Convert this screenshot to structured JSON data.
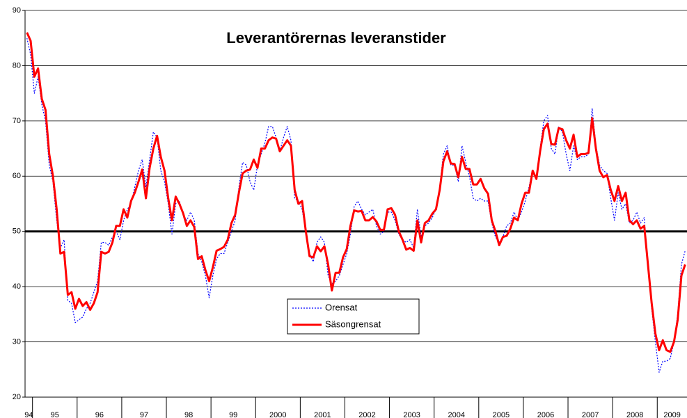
{
  "chart_data": {
    "type": "line",
    "title": "Leverantörernas leveranstider",
    "categories": [
      "94",
      null,
      "95",
      null,
      null,
      null,
      null,
      null,
      null,
      null,
      null,
      null,
      null,
      null,
      "96",
      null,
      null,
      null,
      null,
      null,
      null,
      null,
      null,
      null,
      null,
      null,
      "97",
      null,
      null,
      null,
      null,
      null,
      null,
      null,
      null,
      null,
      null,
      null,
      "98",
      null,
      null,
      null,
      null,
      null,
      null,
      null,
      null,
      null,
      null,
      null,
      "99",
      null,
      null,
      null,
      null,
      null,
      null,
      null,
      null,
      null,
      null,
      null,
      "2000",
      null,
      null,
      null,
      null,
      null,
      null,
      null,
      null,
      null,
      null,
      null,
      "2001",
      null,
      null,
      null,
      null,
      null,
      null,
      null,
      null,
      null,
      null,
      null,
      "2002",
      null,
      null,
      null,
      null,
      null,
      null,
      null,
      null,
      null,
      null,
      null,
      "2003",
      null,
      null,
      null,
      null,
      null,
      null,
      null,
      null,
      null,
      null,
      null,
      "2004",
      null,
      null,
      null,
      null,
      null,
      null,
      null,
      null,
      null,
      null,
      null,
      "2005",
      null,
      null,
      null,
      null,
      null,
      null,
      null,
      null,
      null,
      null,
      null,
      "2006",
      null,
      null,
      null,
      null,
      null,
      null,
      null,
      null,
      null,
      null,
      null,
      "2007",
      null,
      null,
      null,
      null,
      null,
      null,
      null,
      null,
      null,
      null,
      null,
      "2008",
      null,
      null,
      null,
      null,
      null,
      null,
      null,
      null,
      null,
      null,
      null,
      "2009",
      null,
      null,
      null,
      null,
      null,
      null,
      null
    ],
    "series": [
      {
        "name": "Orensat",
        "color": "#0000ff",
        "dash": true,
        "values": [
          85,
          82,
          75,
          78,
          73,
          70,
          62,
          59,
          52,
          47,
          48.5,
          37.5,
          37,
          33.5,
          34,
          34.5,
          36,
          37,
          39,
          41,
          48,
          48,
          47.5,
          49,
          50,
          48.5,
          52,
          54,
          55,
          58,
          61,
          63,
          58,
          63,
          68,
          67,
          61,
          59,
          55,
          49.5,
          55,
          55.5,
          53,
          52,
          53.5,
          52,
          46,
          44.5,
          42,
          38,
          42,
          45,
          46,
          46,
          48,
          50,
          52,
          58,
          62.5,
          62,
          59,
          57.5,
          62,
          64,
          66,
          69,
          69,
          67,
          64.5,
          67,
          69,
          66.5,
          56,
          55.5,
          54,
          50,
          46,
          44.5,
          48,
          49,
          48,
          42,
          40.5,
          41,
          42,
          44,
          46,
          49.5,
          54.5,
          55.5,
          54,
          53,
          53.5,
          54,
          51,
          49.5,
          50,
          53.5,
          53.5,
          52,
          49.5,
          48.5,
          48,
          48.5,
          47,
          54,
          49,
          51,
          51.5,
          52.5,
          54,
          58,
          64,
          65.5,
          62,
          62,
          59,
          65.5,
          62.5,
          60,
          56,
          55.5,
          56,
          55.5,
          55.5,
          51.5,
          49,
          48,
          49,
          51,
          51.5,
          53.5,
          52,
          53.5,
          55.5,
          58,
          61,
          59.5,
          65,
          70,
          71,
          65,
          64,
          69,
          68,
          64,
          61,
          65.5,
          63,
          63.5,
          63.5,
          64,
          72.3,
          65.5,
          62,
          61,
          60.5,
          56,
          52,
          57,
          54,
          55,
          51.5,
          52,
          53.5,
          51.5,
          52.5,
          44,
          36,
          30,
          24.5,
          26.5,
          26.5,
          27,
          30,
          35,
          44,
          46.5
        ]
      },
      {
        "name": "Säsongrensat",
        "color": "#ff0000",
        "dash": false,
        "values": [
          86,
          84.5,
          78,
          79.5,
          74,
          72,
          64,
          60,
          54,
          46,
          46.3,
          38.5,
          39,
          36,
          37.8,
          36.5,
          37.2,
          35.8,
          37,
          39,
          46.3,
          46,
          46.3,
          48,
          51,
          51,
          54,
          52.5,
          55.5,
          57,
          59,
          61.2,
          56,
          61.5,
          65,
          67.3,
          63.5,
          61,
          56,
          52,
          56.3,
          55,
          53.3,
          51,
          52,
          50.8,
          45,
          45.5,
          43,
          41,
          43.5,
          46.5,
          46.8,
          47.2,
          48.5,
          51.5,
          53,
          57,
          60.5,
          61,
          61.2,
          63,
          61.5,
          65,
          65,
          66.5,
          67,
          66.8,
          64.5,
          65.5,
          66.5,
          65.5,
          57.5,
          55,
          55.5,
          50,
          45.5,
          45.3,
          47.3,
          46.4,
          47.3,
          44,
          39.3,
          42.5,
          42.5,
          45.3,
          46.8,
          51,
          53.8,
          53.6,
          53.7,
          52,
          52,
          52.6,
          51.8,
          50.3,
          50.3,
          54,
          54.2,
          53,
          50,
          48.5,
          46.7,
          47,
          46.5,
          52,
          48,
          51.5,
          52,
          53.2,
          54,
          57.5,
          62.7,
          64.5,
          62.3,
          62.2,
          59.8,
          63.5,
          61.3,
          61.3,
          58.5,
          58.5,
          59.5,
          57.8,
          56.8,
          52,
          50,
          47.5,
          49,
          49.2,
          50.5,
          52.5,
          52,
          55,
          57,
          57,
          61,
          59.5,
          64.5,
          68.5,
          69.5,
          65.8,
          65.7,
          68.7,
          68.5,
          66.5,
          65,
          67.5,
          63.5,
          64,
          64,
          64.2,
          70.5,
          65,
          61,
          59.8,
          60.2,
          57.5,
          55.5,
          58.2,
          55.5,
          57,
          52,
          51.3,
          52,
          50.5,
          51,
          44,
          37,
          31.5,
          28.5,
          30.3,
          28.5,
          28.2,
          30,
          34,
          42,
          44
        ]
      }
    ],
    "ylim": [
      20,
      90
    ],
    "yticks": [
      20,
      30,
      40,
      50,
      60,
      70,
      80,
      90
    ],
    "grid": true,
    "reference_line": 50
  }
}
